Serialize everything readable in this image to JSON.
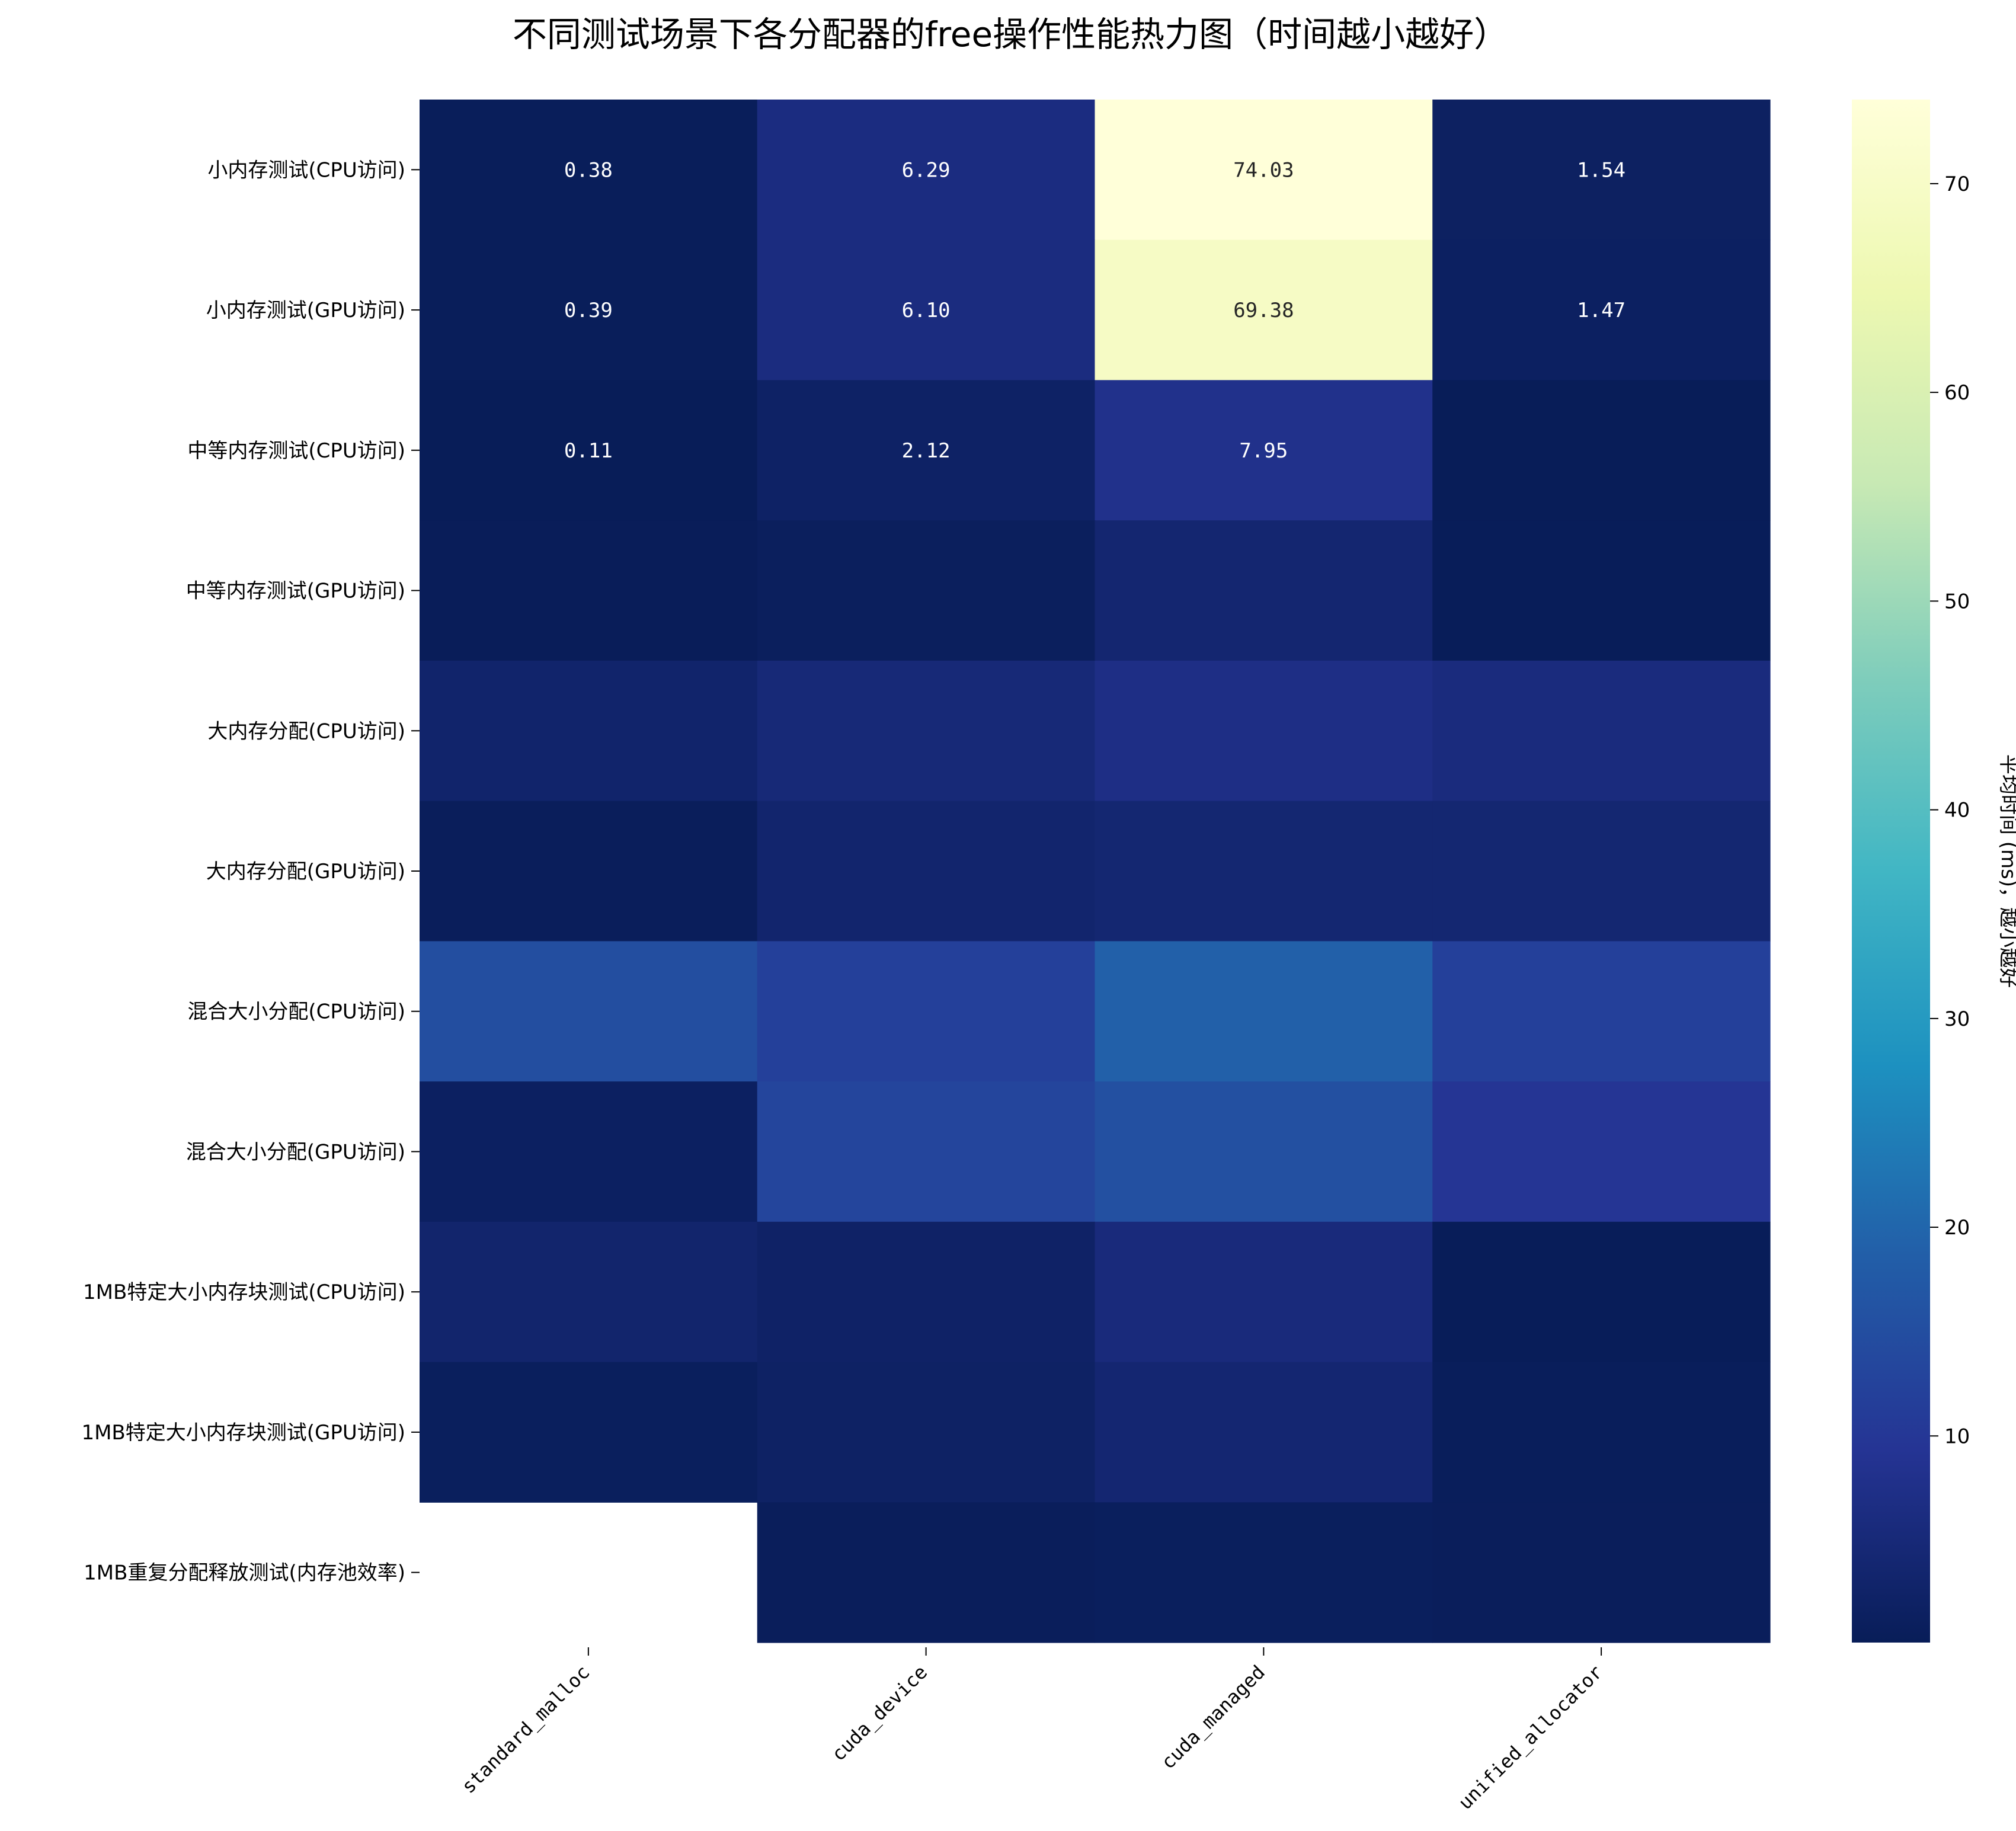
{
  "colors": {
    "colormap": [
      "#081d58",
      "#253494",
      "#225ea8",
      "#1d91c0",
      "#41b6c4",
      "#7fcdbb",
      "#c7e9b4",
      "#edf8b1",
      "#ffffd9"
    ],
    "cell_text_dark_bg": "#ffffff",
    "cell_text_light_bg": "#262626",
    "axis": "#000000"
  },
  "chart_data": {
    "type": "heatmap",
    "title": "不同测试场景下各分配器的free操作性能热力图（时间越小越好）",
    "colorbar_label": "平均时间 (ms)，越小越好",
    "colorbar_range": [
      0.1,
      74.03
    ],
    "colorbar_ticks": [
      10,
      20,
      30,
      40,
      50,
      60,
      70
    ],
    "columns": [
      "standard_malloc",
      "cuda_device",
      "cuda_managed",
      "unified_allocator"
    ],
    "rows": [
      "小内存测试(CPU访问)",
      "小内存测试(GPU访问)",
      "中等内存测试(CPU访问)",
      "中等内存测试(GPU访问)",
      "大内存分配(CPU访问)",
      "大内存分配(GPU访问)",
      "混合大小分配(CPU访问)",
      "混合大小分配(GPU访问)",
      "1MB特定大小内存块测试(CPU访问)",
      "1MB特定大小内存块测试(GPU访问)",
      "1MB重复分配释放测试(内存池效率)"
    ],
    "values": [
      [
        0.38,
        6.29,
        74.03,
        1.54
      ],
      [
        0.39,
        6.1,
        69.38,
        1.47
      ],
      [
        0.11,
        2.12,
        7.95,
        0.15
      ],
      [
        0.3,
        0.9,
        3.8,
        0.2
      ],
      [
        3.0,
        4.8,
        7.0,
        5.8
      ],
      [
        0.6,
        3.3,
        4.0,
        4.0
      ],
      [
        15.0,
        12.0,
        19.0,
        12.0
      ],
      [
        1.5,
        13.0,
        15.5,
        9.5
      ],
      [
        3.2,
        2.2,
        5.5,
        0.2
      ],
      [
        0.8,
        2.0,
        3.9,
        0.5
      ],
      [
        null,
        0.6,
        0.8,
        0.6
      ]
    ],
    "annotations": [
      [
        "0.38",
        "6.29",
        "74.03",
        "1.54"
      ],
      [
        "0.39",
        "6.10",
        "69.38",
        "1.47"
      ],
      [
        "0.11",
        "2.12",
        "7.95",
        ""
      ],
      [
        "",
        "",
        "",
        ""
      ],
      [
        "",
        "",
        "",
        ""
      ],
      [
        "",
        "",
        "",
        ""
      ],
      [
        "",
        "",
        "",
        ""
      ],
      [
        "",
        "",
        "",
        ""
      ],
      [
        "",
        "",
        "",
        ""
      ],
      [
        "",
        "",
        "",
        ""
      ],
      [
        "",
        "",
        "",
        ""
      ]
    ],
    "grid": false
  }
}
